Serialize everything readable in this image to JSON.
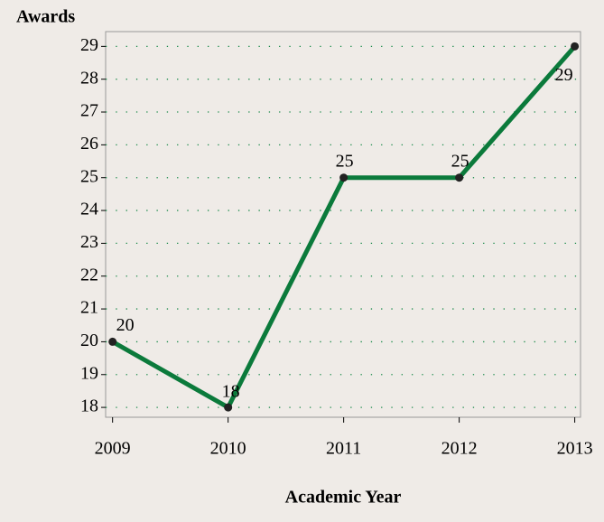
{
  "chart_data": {
    "type": "line",
    "y_axis_title": "Awards",
    "x_axis_title": "Academic Year",
    "x": [
      2009,
      2010,
      2011,
      2012,
      2013
    ],
    "series": [
      {
        "color": "#0b7a3b",
        "values": [
          20,
          18,
          25,
          25,
          29
        ]
      }
    ],
    "xlim": [
      2008.94,
      2013.05
    ],
    "xticks": [
      2009,
      2010,
      2011,
      2012,
      2013
    ],
    "ylim": [
      17.7,
      29.45
    ],
    "yticks": [
      18,
      19,
      20,
      21,
      22,
      23,
      24,
      25,
      26,
      27,
      28,
      29
    ],
    "grid": true,
    "grid_color": "#1a8a4a"
  }
}
